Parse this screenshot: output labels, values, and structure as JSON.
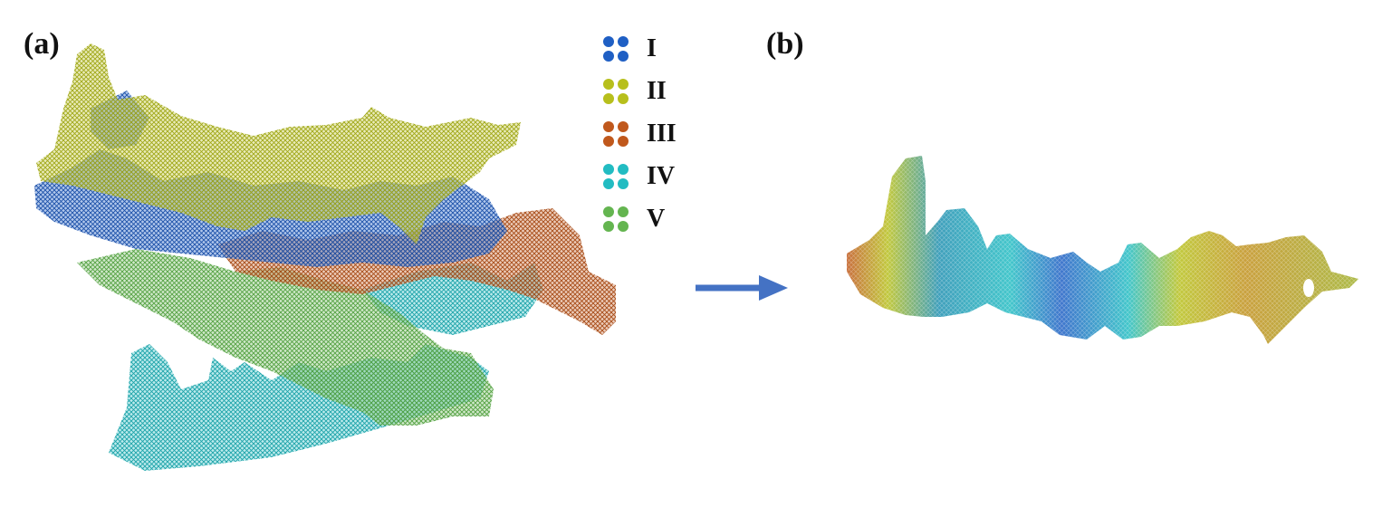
{
  "panels": {
    "a": {
      "label": "(a)"
    },
    "b": {
      "label": "(b)"
    }
  },
  "legend": {
    "items": [
      {
        "label": "I",
        "color": "#1f5fc4"
      },
      {
        "label": "II",
        "color": "#b7bf1c"
      },
      {
        "label": "III",
        "color": "#c0581c"
      },
      {
        "label": "IV",
        "color": "#22bcc2"
      },
      {
        "label": "V",
        "color": "#64b550"
      }
    ]
  },
  "arrow": {
    "color": "#4472c4",
    "icon": "right-arrow-icon"
  }
}
